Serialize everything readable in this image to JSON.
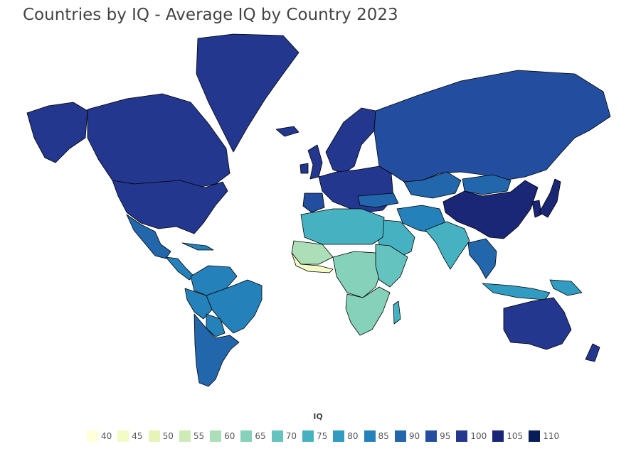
{
  "title": "Countries by IQ - Average IQ by Country 2023",
  "map": {
    "type": "choropleth",
    "projection": "mercator",
    "metric": "IQ",
    "ocean_color": "#ffffff",
    "border_color": "#000000",
    "regions": [
      {
        "name": "Greenland",
        "bucket": 100
      },
      {
        "name": "Alaska",
        "bucket": 100
      },
      {
        "name": "Canada",
        "bucket": 100
      },
      {
        "name": "United States",
        "bucket": 100
      },
      {
        "name": "Mexico",
        "bucket": 90
      },
      {
        "name": "Central America",
        "bucket": 85
      },
      {
        "name": "Cuba",
        "bucket": 85
      },
      {
        "name": "Colombia / Venezuela",
        "bucket": 85
      },
      {
        "name": "Brazil",
        "bucket": 85
      },
      {
        "name": "Peru",
        "bucket": 85
      },
      {
        "name": "Bolivia",
        "bucket": 85
      },
      {
        "name": "Argentina / Chile",
        "bucket": 90
      },
      {
        "name": "Iceland",
        "bucket": 100
      },
      {
        "name": "United Kingdom",
        "bucket": 100
      },
      {
        "name": "Ireland",
        "bucket": 100
      },
      {
        "name": "Scandinavia",
        "bucket": 100
      },
      {
        "name": "Europe",
        "bucket": 100
      },
      {
        "name": "Spain",
        "bucket": 95
      },
      {
        "name": "Russia",
        "bucket": 95
      },
      {
        "name": "Kazakhstan",
        "bucket": 90
      },
      {
        "name": "Mongolia",
        "bucket": 90
      },
      {
        "name": "China",
        "bucket": 105
      },
      {
        "name": "Korea",
        "bucket": 105
      },
      {
        "name": "Japan",
        "bucket": 105
      },
      {
        "name": "Turkey",
        "bucket": 90
      },
      {
        "name": "Iran / Afghanistan",
        "bucket": 85
      },
      {
        "name": "Arabian Peninsula",
        "bucket": 75
      },
      {
        "name": "India",
        "bucket": 75
      },
      {
        "name": "Southeast Asia",
        "bucket": 90
      },
      {
        "name": "Indonesia",
        "bucket": 80
      },
      {
        "name": "Papua New Guinea",
        "bucket": 80
      },
      {
        "name": "Australia",
        "bucket": 100
      },
      {
        "name": "New Zealand",
        "bucket": 100
      },
      {
        "name": "North Africa",
        "bucket": 75
      },
      {
        "name": "West Sahel",
        "bucket": 60
      },
      {
        "name": "West Africa coast",
        "bucket": 45
      },
      {
        "name": "Central Africa",
        "bucket": 65
      },
      {
        "name": "East Africa",
        "bucket": 70
      },
      {
        "name": "Southern Africa",
        "bucket": 65
      },
      {
        "name": "Madagascar",
        "bucket": 75
      }
    ]
  },
  "legend": {
    "title": "IQ",
    "items": [
      {
        "label": "40",
        "color": "#ffffd9"
      },
      {
        "label": "45",
        "color": "#f4fbc7"
      },
      {
        "label": "50",
        "color": "#e6f5b7"
      },
      {
        "label": "55",
        "color": "#cdebb4"
      },
      {
        "label": "60",
        "color": "#acdfb7"
      },
      {
        "label": "65",
        "color": "#86d1ba"
      },
      {
        "label": "70",
        "color": "#64c3bf"
      },
      {
        "label": "75",
        "color": "#46b2c1"
      },
      {
        "label": "80",
        "color": "#319bc1"
      },
      {
        "label": "85",
        "color": "#2581b9"
      },
      {
        "label": "90",
        "color": "#2266ac"
      },
      {
        "label": "95",
        "color": "#234ea0"
      },
      {
        "label": "100",
        "color": "#23378f"
      },
      {
        "label": "105",
        "color": "#1a2676"
      },
      {
        "label": "110",
        "color": "#081d58"
      }
    ]
  }
}
